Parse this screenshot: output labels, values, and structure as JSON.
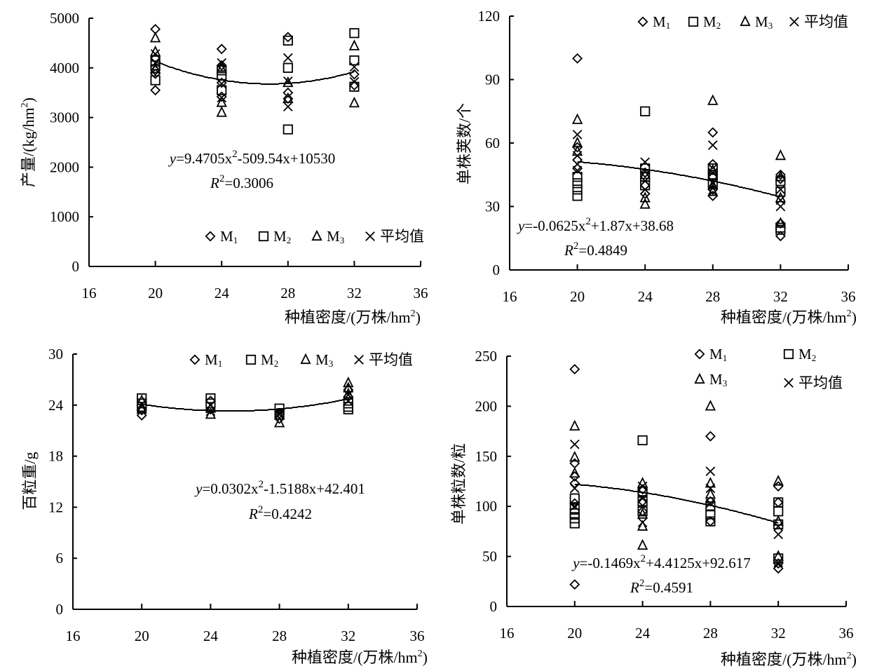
{
  "chart_data": [
    {
      "id": "yield",
      "type": "scatter",
      "title": "",
      "xlabel": "种植密度/(万株/hm²)",
      "xlabel_main": "种植密度/(万株/hm",
      "xlabel_sup": "2",
      "xlabel_close": ")",
      "ylabel_main": "产量/(kg/hm",
      "ylabel_sup": "2",
      "ylabel_close": ")",
      "xlim": [
        16,
        36
      ],
      "ylim": [
        0,
        5000
      ],
      "xticks": [
        16,
        20,
        24,
        28,
        32,
        36
      ],
      "yticks": [
        0,
        1000,
        2000,
        3000,
        4000,
        5000
      ],
      "legend": [
        "M1",
        "M2",
        "M3",
        "平均值"
      ],
      "legend_layout": "one-row",
      "legend_position": "bottom-right",
      "equation": {
        "prefix": "y",
        "part1": "=9.4705x",
        "sup": "2",
        "part2": "-509.54x+10530",
        "r2_label": "R",
        "r2_value": "=0.3006"
      },
      "trend_coefficients": [
        9.4705,
        -509.54,
        10530
      ],
      "trend_range": [
        20,
        32
      ],
      "series": [
        {
          "name": "M1",
          "marker": "diamond",
          "points": [
            [
              20,
              4780
            ],
            [
              20,
              4200
            ],
            [
              20,
              3950
            ],
            [
              20,
              3880
            ],
            [
              20,
              3550
            ],
            [
              24,
              4380
            ],
            [
              24,
              4050
            ],
            [
              24,
              3700
            ],
            [
              24,
              3420
            ],
            [
              28,
              4620
            ],
            [
              28,
              3500
            ],
            [
              28,
              3380
            ],
            [
              32,
              3870
            ],
            [
              32,
              3650
            ]
          ]
        },
        {
          "name": "M2",
          "marker": "square",
          "points": [
            [
              20,
              4150
            ],
            [
              20,
              4050
            ],
            [
              20,
              3750
            ],
            [
              24,
              3950
            ],
            [
              24,
              3850
            ],
            [
              24,
              3550
            ],
            [
              28,
              4550
            ],
            [
              28,
              4000
            ],
            [
              28,
              2760
            ],
            [
              32,
              4700
            ],
            [
              32,
              4150
            ],
            [
              32,
              3620
            ]
          ]
        },
        {
          "name": "M3",
          "marker": "triangle",
          "points": [
            [
              20,
              4600
            ],
            [
              20,
              4320
            ],
            [
              20,
              3980
            ],
            [
              24,
              3980
            ],
            [
              24,
              3300
            ],
            [
              24,
              3100
            ],
            [
              28,
              3700
            ],
            [
              28,
              3380
            ],
            [
              32,
              4440
            ],
            [
              32,
              3290
            ]
          ]
        },
        {
          "name": "平均值",
          "marker": "cross",
          "points": [
            [
              20,
              4280
            ],
            [
              20,
              4100
            ],
            [
              24,
              4100
            ],
            [
              24,
              3680
            ],
            [
              24,
              3400
            ],
            [
              28,
              4200
            ],
            [
              28,
              3730
            ],
            [
              28,
              3220
            ],
            [
              32,
              4020
            ],
            [
              32,
              3720
            ]
          ]
        }
      ]
    },
    {
      "id": "pods",
      "type": "scatter",
      "title": "",
      "xlabel": "种植密度/(万株/hm²)",
      "xlabel_main": "种植密度/(万株/hm",
      "xlabel_sup": "2",
      "xlabel_close": ")",
      "ylabel_main": "单株荚数/个",
      "xlim": [
        16,
        36
      ],
      "ylim": [
        0,
        120
      ],
      "xticks": [
        16,
        20,
        24,
        28,
        32,
        36
      ],
      "yticks": [
        0,
        30,
        60,
        90,
        120
      ],
      "legend": [
        "M1",
        "M2",
        "M3",
        "平均值"
      ],
      "legend_layout": "one-row",
      "legend_position": "top-right",
      "equation": {
        "prefix": "y",
        "part1": "=-0.0625x",
        "sup": "2",
        "part2": "+1.87x+38.68",
        "r2_label": "R",
        "r2_value": "=0.4849"
      },
      "trend_coefficients": [
        -0.0625,
        1.87,
        38.68
      ],
      "trend_range": [
        20,
        32
      ],
      "series": [
        {
          "name": "M1",
          "marker": "diamond",
          "points": [
            [
              20,
              100
            ],
            [
              20,
              58
            ],
            [
              20,
              52
            ],
            [
              20,
              48
            ],
            [
              24,
              46
            ],
            [
              24,
              40
            ],
            [
              24,
              36
            ],
            [
              28,
              65
            ],
            [
              28,
              50
            ],
            [
              28,
              44
            ],
            [
              28,
              38
            ],
            [
              28,
              35
            ],
            [
              32,
              45
            ],
            [
              32,
              43
            ],
            [
              32,
              22
            ],
            [
              32,
              16
            ]
          ]
        },
        {
          "name": "M2",
          "marker": "square",
          "points": [
            [
              20,
              44
            ],
            [
              20,
              41
            ],
            [
              20,
              38
            ],
            [
              20,
              35
            ],
            [
              24,
              75
            ],
            [
              24,
              48
            ],
            [
              24,
              44
            ],
            [
              24,
              40
            ],
            [
              28,
              48
            ],
            [
              28,
              45
            ],
            [
              28,
              41
            ],
            [
              32,
              42
            ],
            [
              32,
              37
            ],
            [
              32,
              20
            ],
            [
              32,
              19
            ]
          ]
        },
        {
          "name": "M3",
          "marker": "triangle",
          "points": [
            [
              20,
              71
            ],
            [
              20,
              60
            ],
            [
              20,
              56
            ],
            [
              24,
              45
            ],
            [
              24,
              34
            ],
            [
              24,
              31
            ],
            [
              28,
              80
            ],
            [
              28,
              47
            ],
            [
              28,
              40
            ],
            [
              28,
              37
            ],
            [
              32,
              54
            ],
            [
              32,
              44
            ],
            [
              32,
              34
            ],
            [
              32,
              22
            ]
          ]
        },
        {
          "name": "平均值",
          "marker": "cross",
          "points": [
            [
              20,
              64
            ],
            [
              20,
              54
            ],
            [
              20,
              50
            ],
            [
              20,
              47
            ],
            [
              24,
              51
            ],
            [
              24,
              42
            ],
            [
              24,
              38
            ],
            [
              28,
              59
            ],
            [
              28,
              46
            ],
            [
              28,
              41
            ],
            [
              32,
              38
            ],
            [
              32,
              33
            ],
            [
              32,
              30
            ]
          ]
        }
      ]
    },
    {
      "id": "seed-weight",
      "type": "scatter",
      "title": "",
      "xlabel": "种植密度/(万株/hm²)",
      "xlabel_main": "种植密度/(万株/hm",
      "xlabel_sup": "2",
      "xlabel_close": ")",
      "ylabel_main": "百粒重/g",
      "xlim": [
        16,
        36
      ],
      "ylim": [
        0,
        30
      ],
      "xticks": [
        16,
        20,
        24,
        28,
        32,
        36
      ],
      "yticks": [
        0,
        6,
        12,
        18,
        24,
        30
      ],
      "legend": [
        "M1",
        "M2",
        "M3",
        "平均值"
      ],
      "legend_layout": "one-row",
      "legend_position": "top-right",
      "equation": {
        "prefix": "y",
        "part1": "=0.0302x",
        "sup": "2",
        "part2": "-1.5188x+42.401",
        "r2_label": "R",
        "r2_value": "=0.4242"
      },
      "trend_coefficients": [
        0.0302,
        -1.5188,
        42.401
      ],
      "trend_range": [
        20,
        32
      ],
      "series": [
        {
          "name": "M1",
          "marker": "diamond",
          "points": [
            [
              20,
              23.4
            ],
            [
              20,
              22.8
            ],
            [
              24,
              24.5
            ],
            [
              24,
              23.5
            ],
            [
              28,
              23.0
            ],
            [
              28,
              22.4
            ],
            [
              32,
              25.8
            ],
            [
              32,
              25.0
            ]
          ]
        },
        {
          "name": "M2",
          "marker": "square",
          "points": [
            [
              20,
              24.8
            ],
            [
              20,
              24.2
            ],
            [
              20,
              23.8
            ],
            [
              24,
              24.8
            ],
            [
              24,
              24.2
            ],
            [
              28,
              23.6
            ],
            [
              28,
              22.9
            ],
            [
              32,
              24.2
            ],
            [
              32,
              23.8
            ],
            [
              32,
              23.5
            ]
          ]
        },
        {
          "name": "M3",
          "marker": "triangle",
          "points": [
            [
              20,
              24.5
            ],
            [
              20,
              23.5
            ],
            [
              24,
              23.6
            ],
            [
              24,
              22.9
            ],
            [
              28,
              22.8
            ],
            [
              28,
              21.9
            ],
            [
              32,
              26.6
            ],
            [
              32,
              26.0
            ],
            [
              32,
              25.3
            ]
          ]
        },
        {
          "name": "平均值",
          "marker": "cross",
          "points": [
            [
              20,
              24.1
            ],
            [
              24,
              24.0
            ],
            [
              24,
              23.3
            ],
            [
              28,
              22.9
            ],
            [
              32,
              25.2
            ],
            [
              32,
              24.5
            ]
          ]
        }
      ]
    },
    {
      "id": "seeds-per-plant",
      "type": "scatter",
      "title": "",
      "xlabel": "种植密度/(万株/hm²)",
      "xlabel_main": "种植密度/(万株/hm",
      "xlabel_sup": "2",
      "xlabel_close": ")",
      "ylabel_main": "单株粒数/粒",
      "xlim": [
        16,
        36
      ],
      "ylim": [
        0,
        250
      ],
      "xticks": [
        16,
        20,
        24,
        28,
        32,
        36
      ],
      "yticks": [
        0,
        50,
        100,
        150,
        200,
        250
      ],
      "legend": [
        "M1",
        "M2",
        "M3",
        "平均值"
      ],
      "legend_layout": "two-rows",
      "legend_position": "top-right",
      "equation": {
        "prefix": "y",
        "part1": "=-0.1469x",
        "sup": "2",
        "part2": "+4.4125x+92.617",
        "r2_label": "R",
        "r2_value": "=0.4591"
      },
      "trend_coefficients": [
        -0.1469,
        4.4125,
        92.617
      ],
      "trend_range": [
        20,
        32
      ],
      "series": [
        {
          "name": "M1",
          "marker": "diamond",
          "points": [
            [
              20,
              237
            ],
            [
              20,
              143
            ],
            [
              20,
              130
            ],
            [
              20,
              123
            ],
            [
              20,
              103
            ],
            [
              20,
              22
            ],
            [
              24,
              117
            ],
            [
              24,
              105
            ],
            [
              24,
              95
            ],
            [
              28,
              170
            ],
            [
              28,
              105
            ],
            [
              28,
              85
            ],
            [
              32,
              120
            ],
            [
              32,
              104
            ],
            [
              32,
              43
            ],
            [
              32,
              38
            ]
          ]
        },
        {
          "name": "M2",
          "marker": "square",
          "points": [
            [
              20,
              108
            ],
            [
              20,
              98
            ],
            [
              20,
              93
            ],
            [
              20,
              88
            ],
            [
              20,
              83
            ],
            [
              24,
              166
            ],
            [
              24,
              115
            ],
            [
              24,
              105
            ],
            [
              24,
              95
            ],
            [
              28,
              100
            ],
            [
              28,
              92
            ],
            [
              28,
              85
            ],
            [
              32,
              104
            ],
            [
              32,
              95
            ],
            [
              32,
              82
            ],
            [
              32,
              48
            ]
          ]
        },
        {
          "name": "M3",
          "marker": "triangle",
          "points": [
            [
              20,
              180
            ],
            [
              20,
              149
            ],
            [
              20,
              133
            ],
            [
              24,
              123
            ],
            [
              24,
              92
            ],
            [
              24,
              80
            ],
            [
              24,
              61
            ],
            [
              28,
              200
            ],
            [
              28,
              123
            ],
            [
              28,
              112
            ],
            [
              32,
              125
            ],
            [
              32,
              85
            ],
            [
              32,
              50
            ]
          ]
        },
        {
          "name": "平均值",
          "marker": "cross",
          "points": [
            [
              20,
              162
            ],
            [
              20,
              118
            ],
            [
              20,
              100
            ],
            [
              24,
              120
            ],
            [
              24,
              108
            ],
            [
              24,
              84
            ],
            [
              28,
              135
            ],
            [
              28,
              118
            ],
            [
              28,
              103
            ],
            [
              32,
              80
            ],
            [
              32,
              72
            ],
            [
              32,
              44
            ]
          ]
        }
      ]
    }
  ]
}
